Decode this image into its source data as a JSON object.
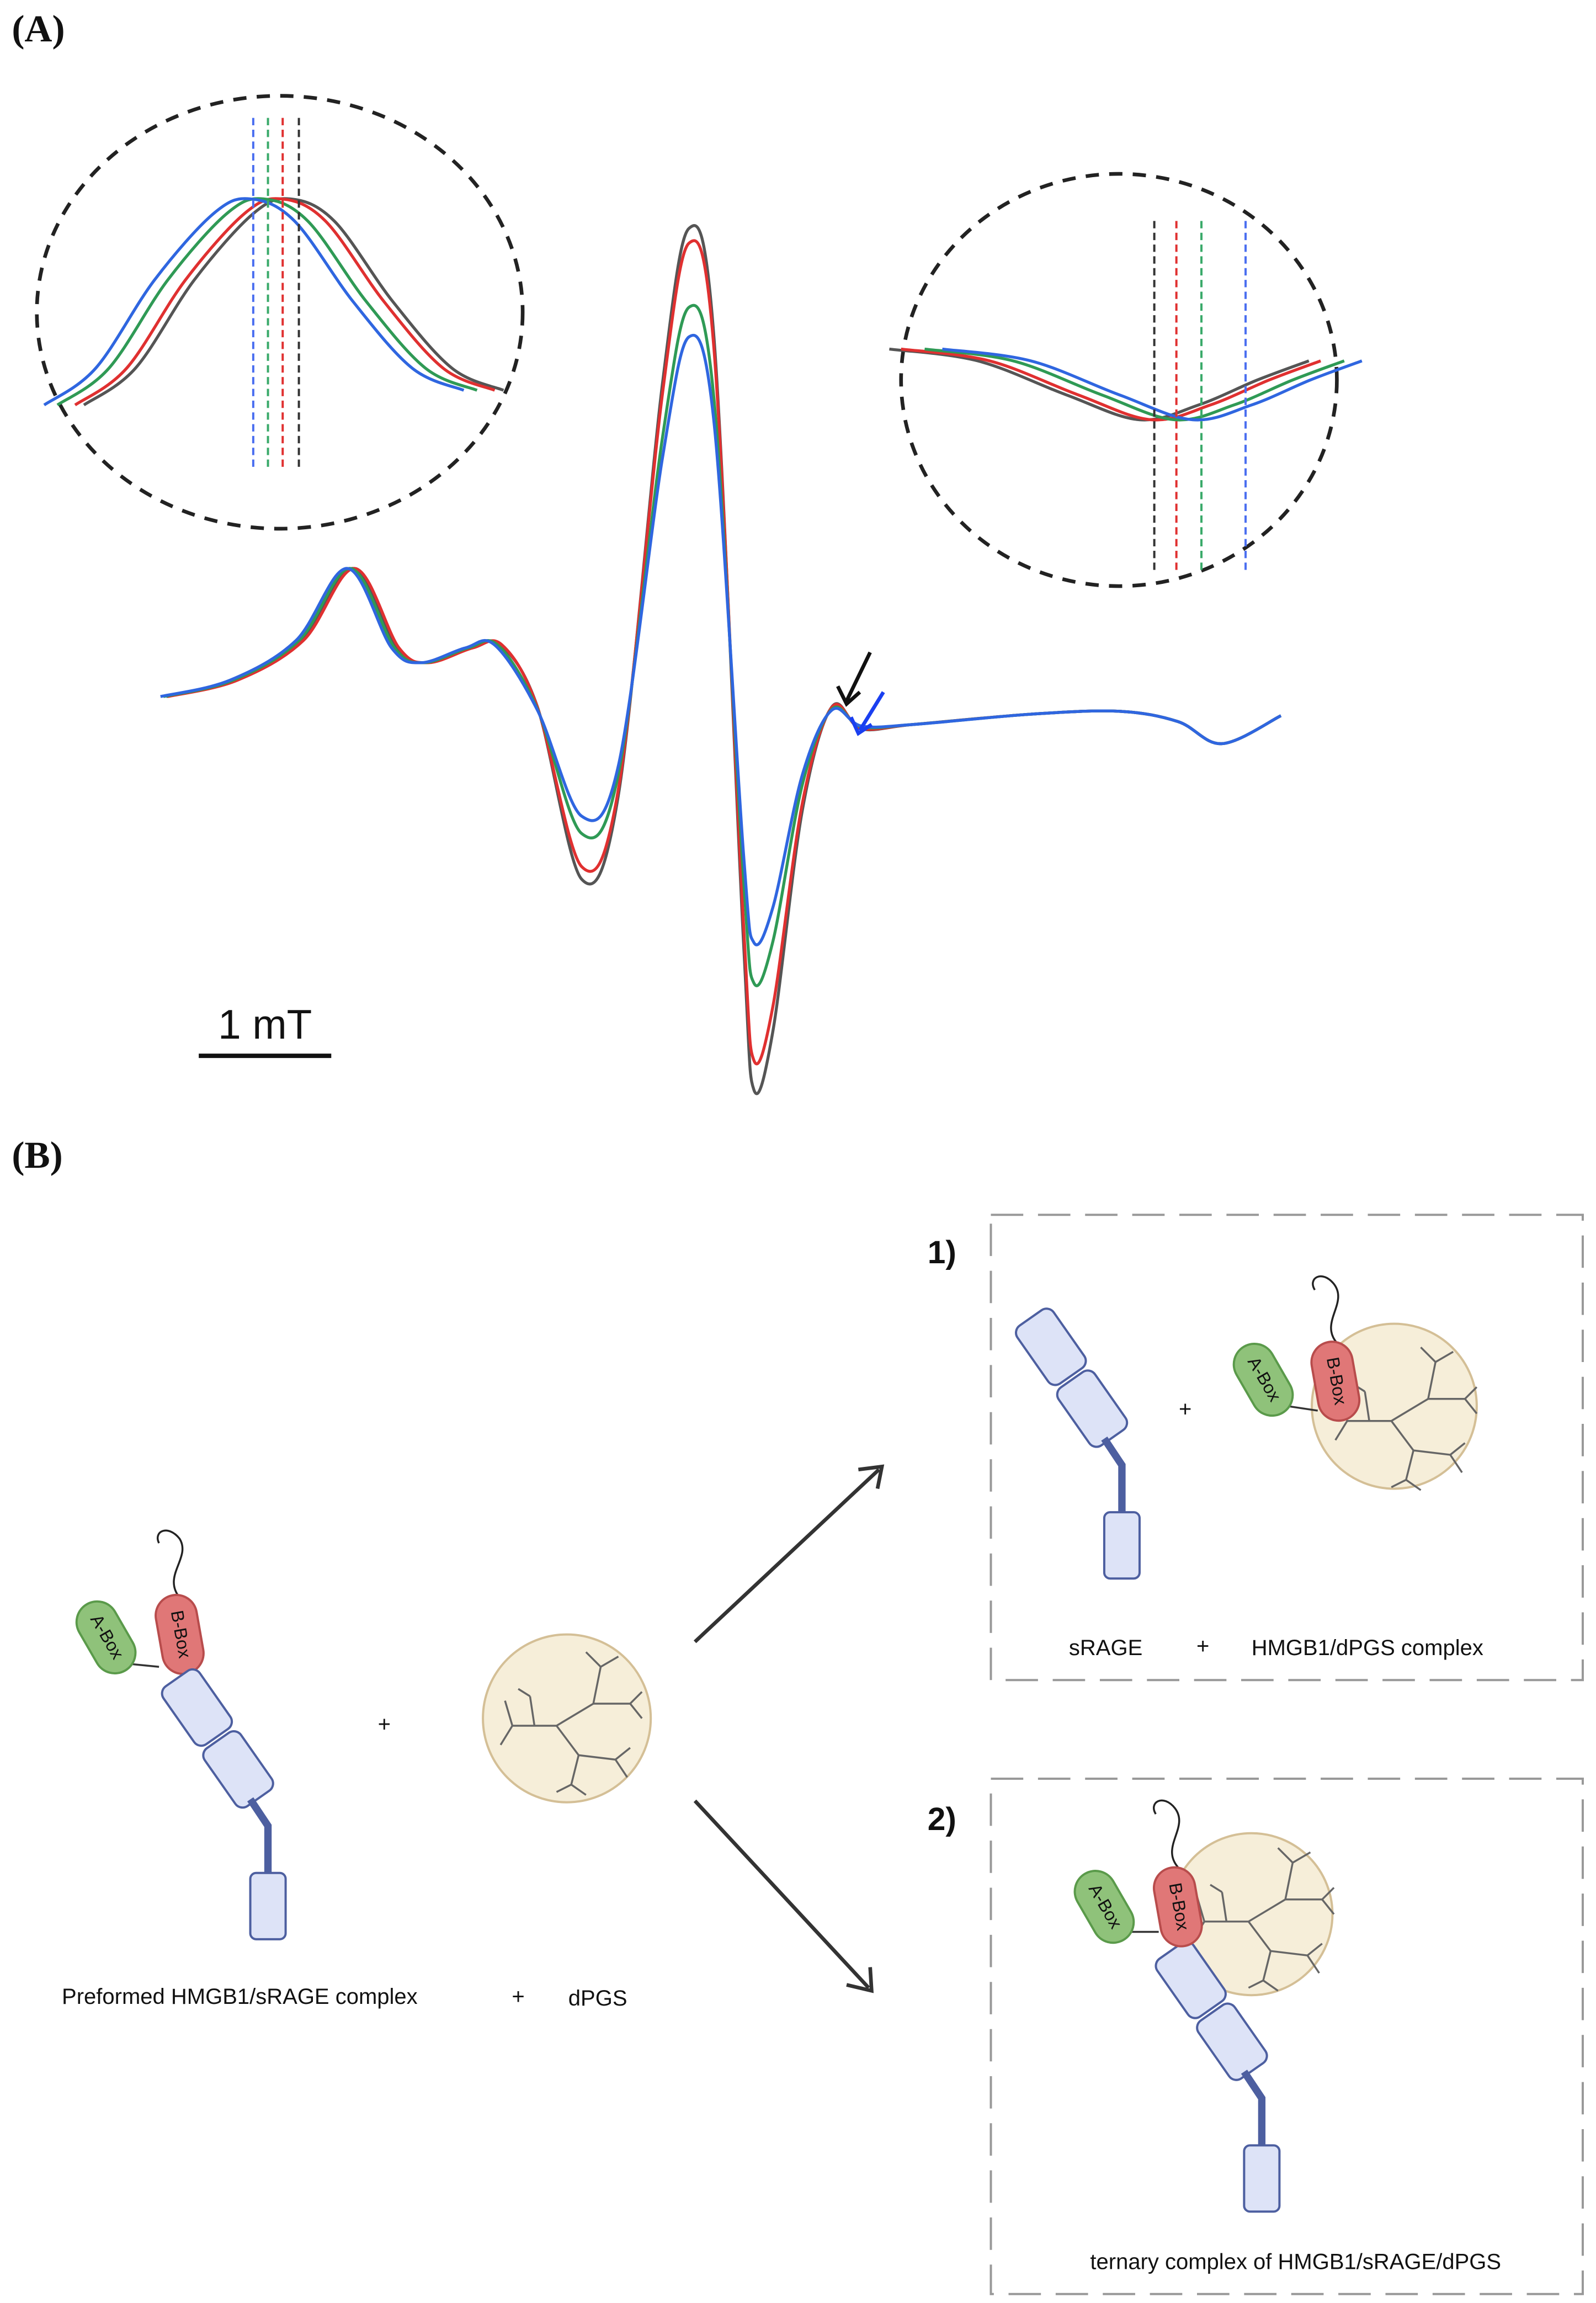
{
  "panel_a": {
    "label": "(A)",
    "scale_bar": "1 mT"
  },
  "panel_b": {
    "label": "(B)",
    "start": {
      "a_box": "A-Box",
      "b_box": "B-Box",
      "plus": "+",
      "caption": "Preformed HMGB1/sRAGE complex",
      "caption_plus": "+",
      "caption_dpgs": "dPGS"
    },
    "outcomes": [
      {
        "number": "1)",
        "a_box": "A-Box",
        "b_box": "B-Box",
        "plus": "+",
        "caption_srage": "sRAGE",
        "caption_plus": "+",
        "caption_complex": "HMGB1/dPGS complex"
      },
      {
        "number": "2)",
        "a_box": "A-Box",
        "b_box": "B-Box",
        "caption": "ternary complex of HMGB1/sRAGE/dPGS"
      }
    ]
  }
}
